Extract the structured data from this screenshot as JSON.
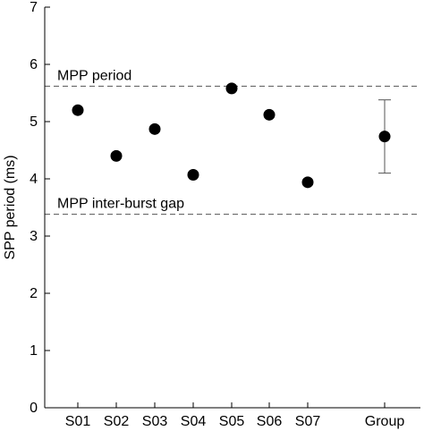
{
  "chart_data": {
    "type": "scatter",
    "title": "",
    "xlabel": "",
    "ylabel": "SPP period (ms)",
    "ylim": [
      0,
      7
    ],
    "yticks": [
      0,
      1,
      2,
      3,
      4,
      5,
      6,
      7
    ],
    "grid": false,
    "categories": [
      "S01",
      "S02",
      "S03",
      "S04",
      "S05",
      "S06",
      "S07",
      "Group"
    ],
    "points": [
      {
        "label": "S01",
        "value": 5.2
      },
      {
        "label": "S02",
        "value": 4.4
      },
      {
        "label": "S03",
        "value": 4.87
      },
      {
        "label": "S04",
        "value": 4.07
      },
      {
        "label": "S05",
        "value": 5.58
      },
      {
        "label": "S06",
        "value": 5.12
      },
      {
        "label": "S07",
        "value": 3.94
      }
    ],
    "group": {
      "label": "Group",
      "mean": 4.74,
      "error_low": 4.1,
      "error_high": 5.38
    },
    "reference_lines": [
      {
        "label": "MPP period",
        "value": 5.62
      },
      {
        "label": "MPP inter-burst gap",
        "value": 3.38
      }
    ],
    "colors": {
      "marker": "#000000",
      "reference_line": "#555555",
      "errorbar": "#555555"
    }
  }
}
